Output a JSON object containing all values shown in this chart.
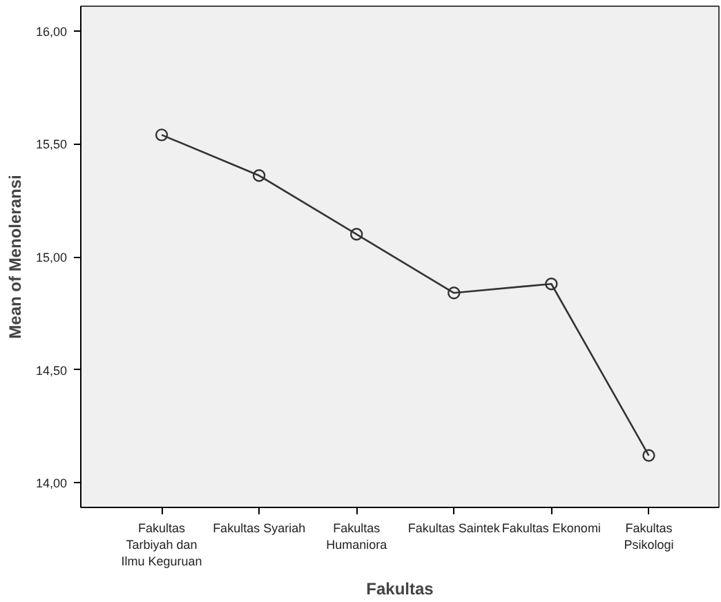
{
  "chart_data": {
    "type": "line",
    "xlabel": "Fakultas",
    "ylabel": "Mean of Menoleransi",
    "categories": [
      "Fakultas\nTarbiyah dan\nIlmu Keguruan",
      "Fakultas Syariah",
      "Fakultas\nHumaniora",
      "Fakultas Saintek",
      "Fakultas Ekonomi",
      "Fakultas\nPsikologi"
    ],
    "series": [
      {
        "color": "#333333",
        "values": [
          15.54,
          15.36,
          15.1,
          14.84,
          14.88,
          14.12
        ]
      }
    ],
    "ylim": [
      13.89,
      16.11
    ],
    "yticks": [
      {
        "value": 14,
        "label": "14,00"
      },
      {
        "value": 14.5,
        "label": "14,50"
      },
      {
        "value": 15,
        "label": "15,00"
      },
      {
        "value": 15.5,
        "label": "15,50"
      },
      {
        "value": 16,
        "label": "16,00"
      }
    ],
    "marker": "circle",
    "line_style": "solid",
    "grid": false
  }
}
